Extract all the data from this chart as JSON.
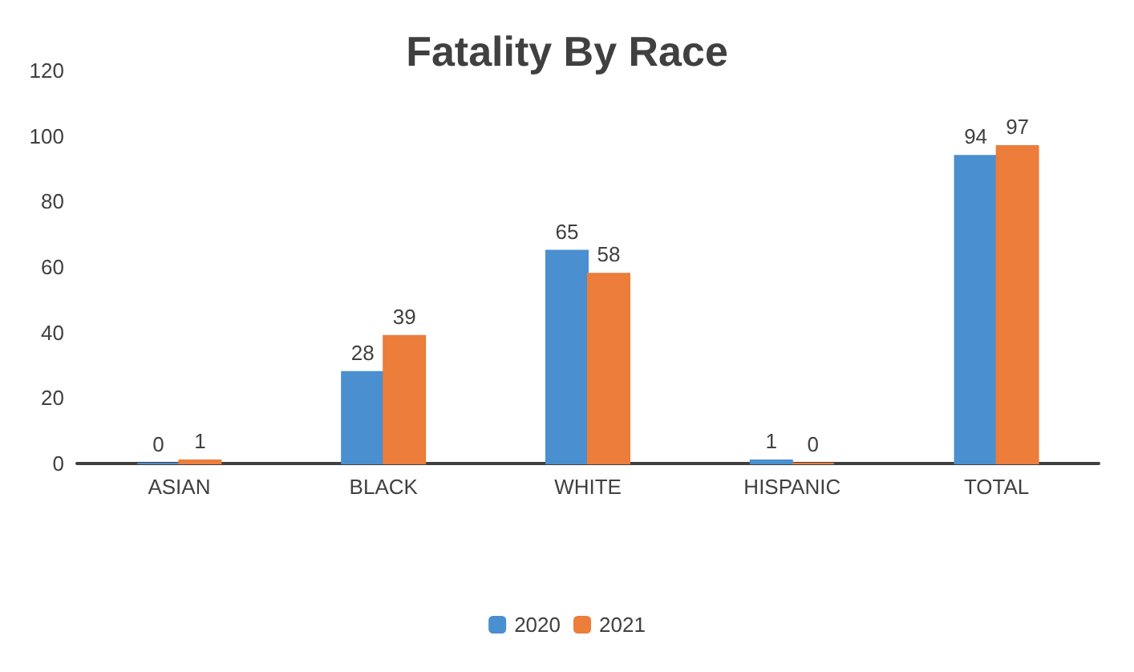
{
  "chart_data": {
    "type": "bar",
    "title": "Fatality By Race",
    "categories": [
      "ASIAN",
      "BLACK",
      "WHITE",
      "HISPANIC",
      "TOTAL"
    ],
    "series": [
      {
        "name": "2020",
        "color": "#4a8fd0",
        "values": [
          0,
          28,
          65,
          1,
          94
        ]
      },
      {
        "name": "2021",
        "color": "#ec7d3a",
        "values": [
          1,
          39,
          58,
          0,
          97
        ]
      }
    ],
    "ylim": [
      0,
      120
    ],
    "yticks": [
      0,
      20,
      40,
      60,
      80,
      100,
      120
    ],
    "grid": false,
    "legend": "bottom",
    "data_labels": true
  }
}
